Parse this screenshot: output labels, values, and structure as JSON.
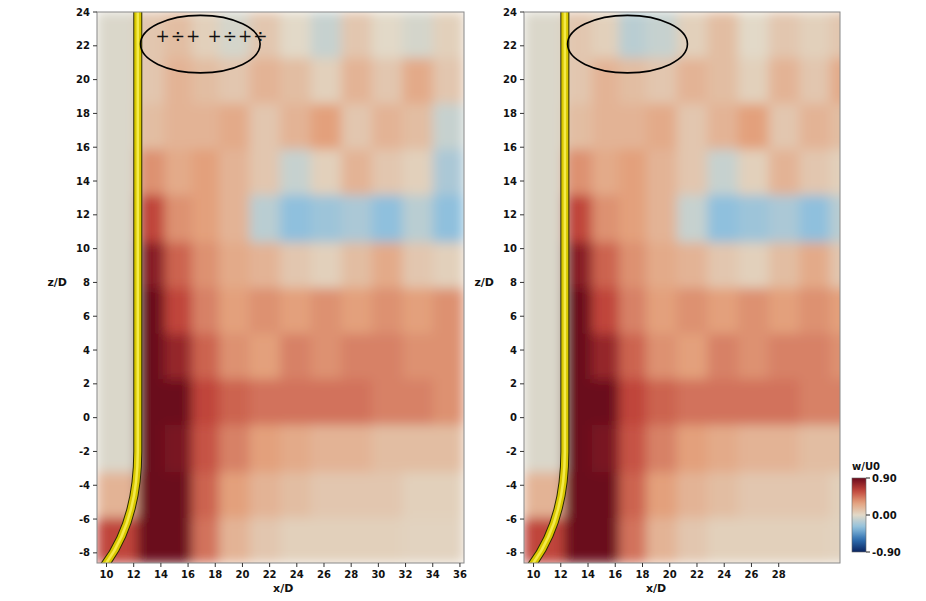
{
  "chart_data": [
    {
      "type": "heatmap",
      "xlabel": "x/D",
      "ylabel": "z/D",
      "xlim": [
        9.3,
        36.3
      ],
      "ylim": [
        -8.6,
        24
      ],
      "xticks": [
        10,
        12,
        14,
        16,
        18,
        20,
        22,
        24,
        26,
        28,
        30,
        32,
        34,
        36
      ],
      "yticks": [
        -8,
        -6,
        -4,
        -2,
        0,
        2,
        4,
        6,
        8,
        10,
        12,
        14,
        16,
        18,
        20,
        22,
        24
      ],
      "x_edges": [
        9.3,
        12.3,
        14.3,
        16.3,
        18.3,
        20.55,
        22.8,
        25.05,
        27.3,
        29.55,
        31.8,
        34.05,
        36.3
      ],
      "y_edges": [
        -8.6,
        -5.9,
        -3.2,
        -0.4,
        2.3,
        5,
        7.7,
        10.4,
        13.2,
        15.9,
        18.6,
        21.3,
        24
      ],
      "cells": [
        [
          0.6,
          0.9,
          0.9,
          0.45,
          0.2,
          0.1,
          0.05,
          0.05,
          0.05,
          0.05,
          0.03,
          0.03
        ],
        [
          0.2,
          0.9,
          0.9,
          0.5,
          0.3,
          0.2,
          0.15,
          0.1,
          0.1,
          0.1,
          0.05,
          0.05
        ],
        [
          -0.03,
          0.9,
          0.85,
          0.55,
          0.4,
          0.3,
          0.25,
          0.2,
          0.2,
          0.15,
          0.15,
          0.15
        ],
        [
          -0.03,
          0.9,
          0.9,
          0.6,
          0.5,
          0.45,
          0.45,
          0.45,
          0.45,
          0.4,
          0.4,
          0.35
        ],
        [
          -0.03,
          0.9,
          0.75,
          0.5,
          0.35,
          0.3,
          0.4,
          0.35,
          0.4,
          0.4,
          0.35,
          0.35
        ],
        [
          -0.03,
          0.9,
          0.6,
          0.4,
          0.3,
          0.35,
          0.3,
          0.35,
          0.3,
          0.35,
          0.3,
          0.35
        ],
        [
          -0.03,
          0.8,
          0.5,
          0.35,
          0.25,
          0.2,
          0.1,
          0.05,
          0.15,
          0.25,
          0.1,
          0.05
        ],
        [
          -0.03,
          0.6,
          0.35,
          0.3,
          0.2,
          -0.15,
          -0.3,
          -0.25,
          -0.2,
          -0.3,
          -0.15,
          -0.3
        ],
        [
          -0.03,
          0.35,
          0.25,
          0.3,
          0.2,
          0.1,
          -0.1,
          0.05,
          0.2,
          0.1,
          0.05,
          -0.2
        ],
        [
          -0.03,
          0.15,
          0.2,
          0.2,
          0.25,
          0.1,
          0.2,
          0.3,
          0.1,
          0.2,
          0.15,
          -0.1
        ],
        [
          -0.03,
          0.1,
          0.2,
          0.15,
          0.1,
          0.2,
          0.15,
          0.05,
          0.2,
          0.1,
          0.25,
          0.1
        ],
        [
          -0.03,
          0.1,
          0.15,
          0.05,
          -0.05,
          0.1,
          0,
          -0.1,
          0.1,
          0,
          -0.05,
          0.05
        ]
      ],
      "color_range": [
        -0.9,
        0.9
      ],
      "annotations": [
        "+÷+ +÷+÷"
      ]
    },
    {
      "type": "heatmap",
      "xlabel": "x/D",
      "ylabel": "z/D",
      "xlim": [
        9.3,
        32.5
      ],
      "ylim": [
        -8.6,
        24
      ],
      "xticks": [
        10,
        12,
        14,
        16,
        18,
        20,
        22,
        24,
        26,
        28
      ],
      "yticks": [
        -8,
        -6,
        -4,
        -2,
        0,
        2,
        4,
        6,
        8,
        10,
        12,
        14,
        16,
        18,
        20,
        22,
        24
      ],
      "x_edges": [
        9.3,
        12.3,
        14.3,
        16.3,
        18.3,
        20.55,
        22.8,
        25.05,
        27.3,
        29.55,
        31.8,
        34.05
      ],
      "y_edges": [
        -8.6,
        -5.9,
        -3.2,
        -0.4,
        2.3,
        5,
        7.7,
        10.4,
        13.2,
        15.9,
        18.6,
        21.3,
        24
      ],
      "cells": [
        [
          0.6,
          0.9,
          0.9,
          0.45,
          0.2,
          0.1,
          0.05,
          0.05,
          0.05,
          0.05,
          0.03
        ],
        [
          0.2,
          0.9,
          0.9,
          0.5,
          0.3,
          0.2,
          0.15,
          0.1,
          0.1,
          0.1,
          0.05
        ],
        [
          -0.03,
          0.9,
          0.85,
          0.55,
          0.4,
          0.3,
          0.25,
          0.2,
          0.2,
          0.15,
          0.15
        ],
        [
          -0.03,
          0.9,
          0.9,
          0.6,
          0.5,
          0.45,
          0.45,
          0.45,
          0.45,
          0.4,
          0.4
        ],
        [
          -0.03,
          0.9,
          0.75,
          0.5,
          0.35,
          0.3,
          0.4,
          0.35,
          0.4,
          0.4,
          0.35
        ],
        [
          -0.03,
          0.9,
          0.6,
          0.4,
          0.3,
          0.35,
          0.3,
          0.35,
          0.3,
          0.35,
          0.3
        ],
        [
          -0.03,
          0.8,
          0.5,
          0.35,
          0.25,
          0.2,
          0.1,
          0.05,
          0.15,
          0.25,
          0.1
        ],
        [
          -0.03,
          0.6,
          0.35,
          0.3,
          0.2,
          -0.1,
          -0.3,
          -0.25,
          -0.2,
          -0.3,
          -0.15
        ],
        [
          -0.03,
          0.35,
          0.25,
          0.3,
          0.2,
          0.1,
          -0.1,
          0.05,
          0.2,
          0.1,
          0.05
        ],
        [
          -0.03,
          0.15,
          0.2,
          0.2,
          0.25,
          0.1,
          0.2,
          0.3,
          0.1,
          0.2,
          0.15
        ],
        [
          -0.03,
          0.1,
          0.2,
          0.15,
          0.1,
          0.2,
          0.15,
          0.05,
          0.2,
          0.1,
          0.25
        ],
        [
          -0.03,
          0.1,
          0.05,
          -0.15,
          -0.1,
          0.05,
          0.15,
          0,
          0.1,
          0.05,
          0.1
        ]
      ],
      "colorbar": {
        "title": "w/U0",
        "range": [
          -0.9,
          0.9
        ],
        "ticks": [
          {
            "value": 0.9,
            "label": "0.90"
          },
          {
            "value": 0,
            "label": "0.00"
          },
          {
            "value": -0.9,
            "label": "-0.90"
          }
        ]
      }
    }
  ]
}
